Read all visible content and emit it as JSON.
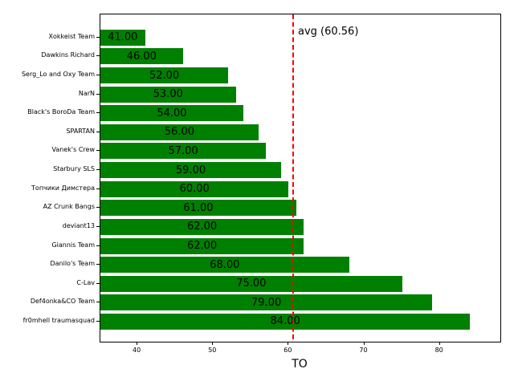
{
  "figure": {
    "background": "#ffffff"
  },
  "chart_data": {
    "type": "bar",
    "orientation": "horizontal",
    "title": "",
    "xlabel": "TO",
    "ylabel": "",
    "categories": [
      "Xokkeist Team",
      "Dawkins Richard",
      "Serg_Lo and Oxy Team",
      "NarN",
      "Black's BoroDa Team",
      "SPARTAN",
      "Vanek's Crew",
      "Starbury SLS",
      "Топчики Димстера",
      "AZ Crunk Bangs",
      "deviant13",
      "Giannis Team",
      "Danilo's Team",
      "C-Lav",
      "Def4onka&CO Team",
      "fr0mhell traumasquad"
    ],
    "values": [
      41,
      46,
      52,
      53,
      54,
      56,
      57,
      59,
      60,
      61,
      62,
      62,
      68,
      75,
      79,
      84
    ],
    "bar_labels": [
      "41.00",
      "46.00",
      "52.00",
      "53.00",
      "54.00",
      "56.00",
      "57.00",
      "59.00",
      "60.00",
      "61.00",
      "62.00",
      "62.00",
      "68.00",
      "75.00",
      "79.00",
      "84.00"
    ],
    "bar_color": "#008000",
    "xticks": [
      40,
      50,
      60,
      70,
      80
    ],
    "xtick_labels": [
      "40",
      "50",
      "60",
      "70",
      "80"
    ],
    "xlim": [
      35.1,
      88.0
    ],
    "grid": false,
    "legend": "none",
    "avg_line": {
      "value": 60.56,
      "label": "avg (60.56)",
      "color": "#ff0000",
      "style": "dashed"
    }
  }
}
